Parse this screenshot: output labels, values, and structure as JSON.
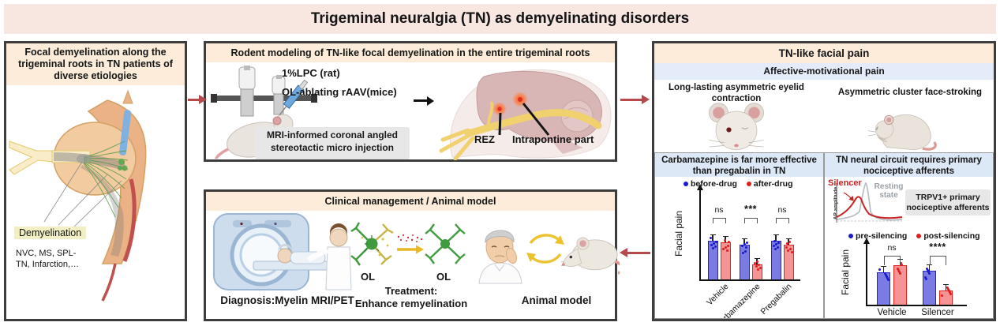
{
  "banner": {
    "title": "Trigeminal neuralgia (TN) as demyelinating disorders"
  },
  "left_panel": {
    "title": "Focal demyelination along the trigeminal roots in TN patients of diverse etiologies",
    "demyelination_label": "Demyelination",
    "etiologies": "NVC, MS, SPL-\nTN, Infarction,…"
  },
  "rodent_panel": {
    "title": "Rodent modeling of TN-like focal demyelination in the entire trigeminal roots",
    "lpc_label": "1%LPC (rat)",
    "aav_label": "OL-ablating rAAV(mice)",
    "injection_note": "MRI-informed coronal angled stereotactic micro injection",
    "rez_label": "REZ",
    "intrapontine_label": "Intrapontine part"
  },
  "clinical_panel": {
    "title": "Clinical management / Animal model",
    "diagnosis_label": "Diagnosis:Myelin MRI/PET",
    "ol_damaged_label": "OL",
    "ol_healthy_label": "OL",
    "treatment_label": "Treatment:\nEnhance remyelination",
    "animal_model_label": "Animal model"
  },
  "pain_panel": {
    "title": "TN-like facial pain",
    "subtitle": "Affective-motivational pain",
    "eyelid_label": "Long-lasting asymmetric eyelid contraction",
    "stroking_label": "Asymmetric cluster face-stroking"
  },
  "chart_data": [
    {
      "type": "bar",
      "title": "Carbamazepine is far more effective than pregabalin in TN",
      "ylabel": "Facial pain",
      "categories": [
        "Vehicle",
        "Carbamazepine",
        "Pregabalin"
      ],
      "series": [
        {
          "name": "before-drug",
          "values": [
            0.74,
            0.67,
            0.74
          ],
          "fill": "#7b7be4",
          "edge": "#2626c8",
          "point": "#1a1ad0"
        },
        {
          "name": "after-drug",
          "values": [
            0.71,
            0.29,
            0.67
          ],
          "fill": "#f59494",
          "edge": "#e52222",
          "point": "#e01e1e"
        }
      ],
      "significance": [
        "ns",
        "***",
        "ns"
      ],
      "ylim": [
        0,
        1
      ],
      "notes": "y axis unlabeled arbitrary units with arrow; paired bars with scatter points and error bars; x tick labels rotated 45°"
    },
    {
      "type": "bar",
      "title": "TN neural circuit requires primary nociceptive afferents",
      "ylabel": "Facial pain",
      "categories": [
        "Vehicle",
        "Silencer"
      ],
      "series": [
        {
          "name": "pre-silencing",
          "values": [
            0.66,
            0.69
          ],
          "fill": "#7b7be4",
          "edge": "#2626c8",
          "point": "#1a1ad0"
        },
        {
          "name": "post-silencing",
          "values": [
            0.81,
            0.29
          ],
          "fill": "#f59494",
          "edge": "#e52222",
          "point": "#e01e1e"
        }
      ],
      "significance": [
        "ns",
        "****"
      ],
      "ylim": [
        0,
        1
      ],
      "inset": {
        "silencer_label": "Silencer",
        "resting_label": "Resting state",
        "ap_ylabel": "AP amplitude",
        "box_label": "TRPV1+ primary nociceptive afferents"
      }
    }
  ],
  "colors": {
    "banner_bg": "#f8e6e1",
    "panel_header_bg": "#fcecd9",
    "subheader_bg": "#e3ecf8",
    "chart_header_bg": "#dce8f5",
    "border_dark": "#3d3d3d",
    "arrow_red": "#b5494c",
    "bar_blue_fill": "#7b7be4",
    "bar_blue_edge": "#2626c8",
    "bar_red_fill": "#f59494",
    "bar_red_edge": "#e52222",
    "highlight_yellow": "#f2efc4",
    "note_box_bg": "#e7e7e7",
    "silencer_red": "#c92424",
    "resting_gray": "#9aa0a6"
  }
}
